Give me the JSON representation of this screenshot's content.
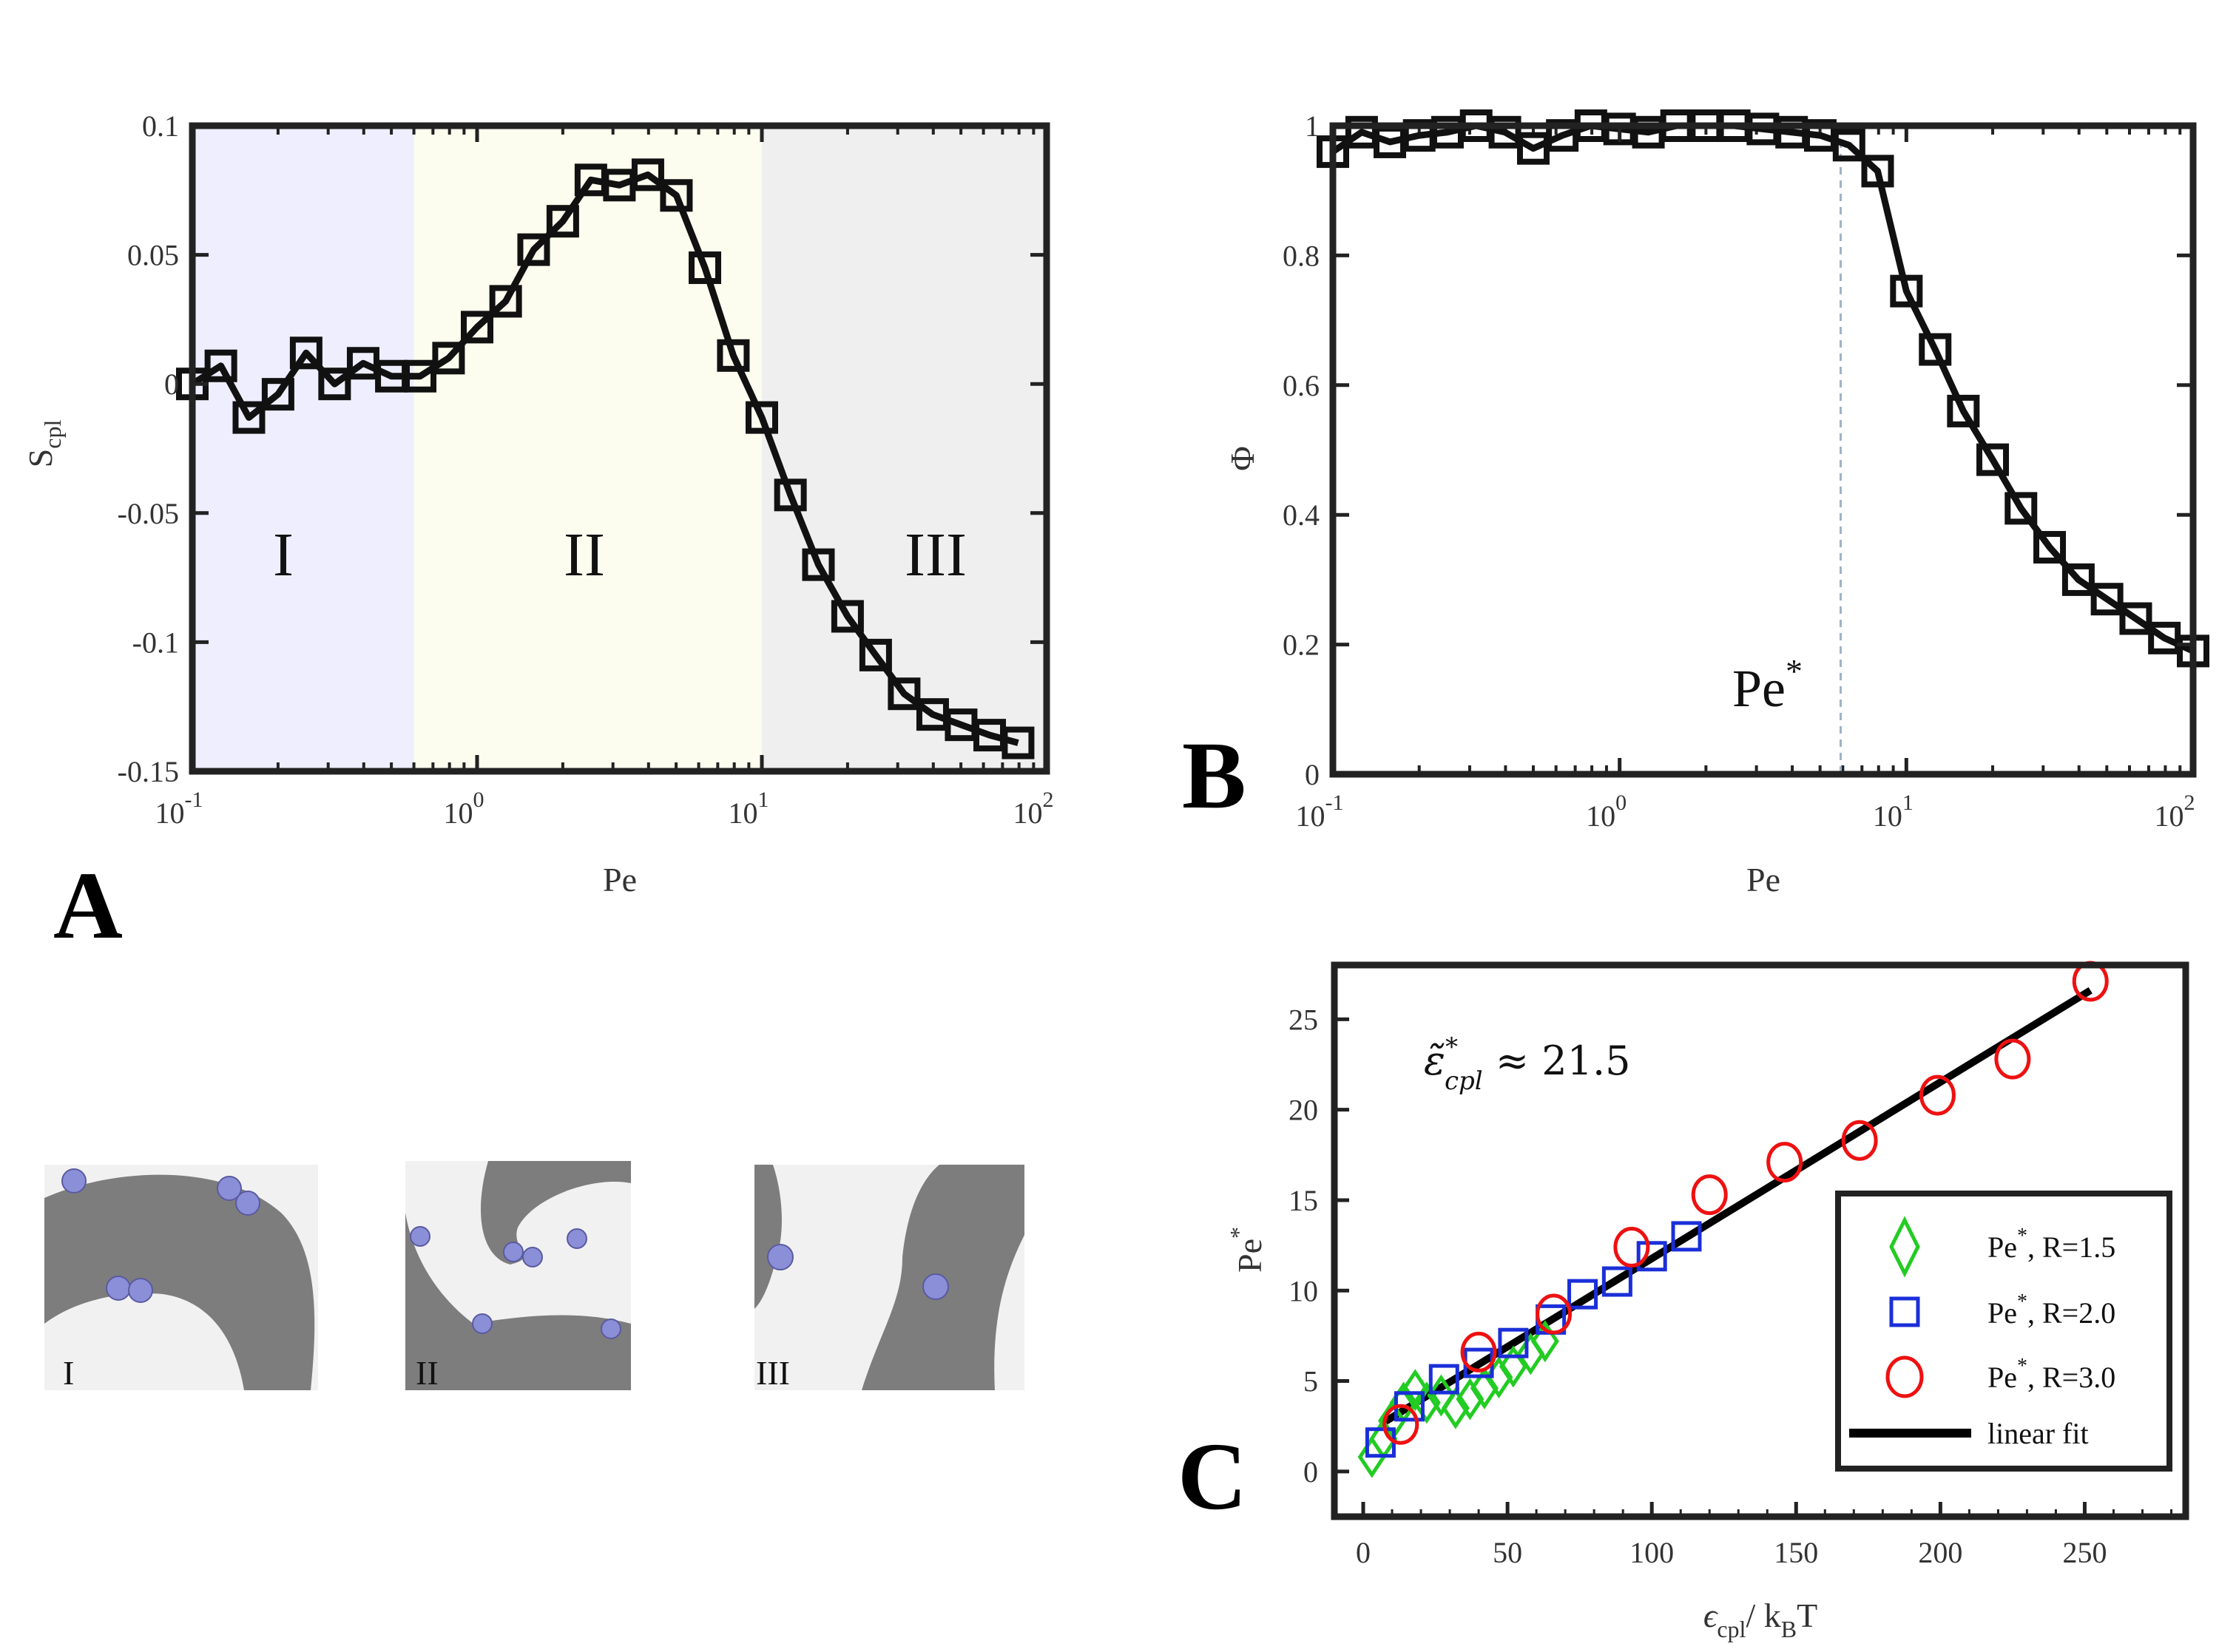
{
  "chart_data": [
    {
      "type": "line",
      "panel": "A",
      "xlabel": "Pe",
      "ylabel_main": "S",
      "ylabel_sub": "cpl",
      "xscale": "log",
      "xlim": [
        0.1,
        100
      ],
      "ylim": [
        -0.15,
        0.1
      ],
      "xticks": [
        0.1,
        1,
        10,
        100
      ],
      "xtick_base": "10",
      "xtick_exps": [
        "-1",
        "0",
        "1",
        "2"
      ],
      "yticks": [
        -0.15,
        -0.1,
        -0.05,
        0,
        0.05,
        0.1
      ],
      "ytick_labels": [
        "-0.15",
        "-0.1",
        "-0.05",
        "0",
        "0.05",
        "0.1"
      ],
      "regions": [
        {
          "label": "I",
          "x_from": 0.1,
          "x_to": 0.6,
          "color": "#eeeeff"
        },
        {
          "label": "II",
          "x_from": 0.6,
          "x_to": 10,
          "color": "#fcfdee"
        },
        {
          "label": "III",
          "x_from": 10,
          "x_to": 100,
          "color": "#efefef"
        }
      ],
      "series": [
        {
          "marker": "square",
          "color": "#111111",
          "x": [
            0.1,
            0.126,
            0.158,
            0.2,
            0.251,
            0.316,
            0.398,
            0.5,
            0.631,
            0.794,
            1.0,
            1.26,
            1.58,
            2.0,
            2.51,
            3.16,
            3.98,
            5.01,
            6.31,
            7.94,
            10.0,
            12.6,
            15.8,
            20.0,
            25.1,
            31.6,
            39.8,
            50.1,
            63.1,
            79.4
          ],
          "y": [
            0.0,
            0.007,
            -0.013,
            -0.004,
            0.012,
            0.0,
            0.008,
            0.003,
            0.003,
            0.01,
            0.022,
            0.032,
            0.052,
            0.063,
            0.079,
            0.077,
            0.081,
            0.073,
            0.045,
            0.011,
            -0.013,
            -0.043,
            -0.07,
            -0.09,
            -0.105,
            -0.12,
            -0.128,
            -0.132,
            -0.136,
            -0.139
          ]
        }
      ]
    },
    {
      "type": "line",
      "panel": "B",
      "xlabel": "Pe",
      "ylabel": "Φ",
      "xscale": "log",
      "xlim": [
        0.1,
        100
      ],
      "ylim": [
        0,
        1
      ],
      "xticks": [
        0.1,
        1,
        10,
        100
      ],
      "xtick_base": "10",
      "xtick_exps": [
        "-1",
        "0",
        "1",
        "2"
      ],
      "yticks": [
        0,
        0.2,
        0.4,
        0.6,
        0.8,
        1
      ],
      "ytick_labels": [
        "0",
        "0.2",
        "0.4",
        "0.6",
        "0.8",
        "1"
      ],
      "vline": {
        "x": 5.9,
        "label_main": "Pe",
        "label_sup": "*",
        "color": "#9fb3c8"
      },
      "series": [
        {
          "marker": "square",
          "color": "#111111",
          "x": [
            0.1,
            0.126,
            0.158,
            0.2,
            0.251,
            0.316,
            0.398,
            0.5,
            0.631,
            0.794,
            1.0,
            1.26,
            1.58,
            2.0,
            2.51,
            3.16,
            3.98,
            5.01,
            6.31,
            7.94,
            10.0,
            12.6,
            15.8,
            20.0,
            25.1,
            31.6,
            39.8,
            50.1,
            63.1,
            79.4,
            100
          ],
          "y": [
            0.96,
            0.99,
            0.975,
            0.985,
            0.99,
            1.0,
            0.99,
            0.965,
            0.985,
            1.0,
            0.995,
            0.99,
            1.0,
            1.0,
            1.0,
            0.995,
            0.99,
            0.985,
            0.97,
            0.93,
            0.745,
            0.655,
            0.56,
            0.485,
            0.41,
            0.35,
            0.3,
            0.27,
            0.24,
            0.21,
            0.19
          ]
        }
      ]
    },
    {
      "type": "scatter",
      "panel": "C",
      "xlabel_main": "ϵ",
      "xlabel_sub": "cpl",
      "xlabel_mid": "/ k",
      "xlabel_sub2": "B",
      "xlabel_end": "T",
      "ylabel_main": "Pe",
      "ylabel_sup": "*",
      "xlim": [
        -10,
        285
      ],
      "ylim": [
        -2.5,
        28
      ],
      "xticks": [
        0,
        50,
        100,
        150,
        200,
        250
      ],
      "xtick_labels": [
        "0",
        "50",
        "100",
        "150",
        "200",
        "250"
      ],
      "yticks": [
        0,
        5,
        10,
        15,
        20,
        25
      ],
      "ytick_labels": [
        "0",
        "5",
        "10",
        "15",
        "20",
        "25"
      ],
      "annotation": {
        "main": "ε̃",
        "sup": "*",
        "sub": "cpl",
        "rest": " ≈ 21.5"
      },
      "legend_placement": "bottom-right",
      "series": [
        {
          "name": "Pe*, R=1.5",
          "legend_main": "Pe",
          "legend_sup": "*",
          "legend_rest": ", R=1.5",
          "marker": "diamond",
          "color": "#22cc22",
          "x": [
            3,
            7,
            10,
            14,
            18,
            22,
            27,
            32,
            37,
            42,
            47,
            52,
            58,
            63
          ],
          "y": [
            0.8,
            1.8,
            2.8,
            3.8,
            4.5,
            3.8,
            4.2,
            3.5,
            4.0,
            4.6,
            5.2,
            5.8,
            6.5,
            7.2
          ]
        },
        {
          "name": "Pe*, R=2.0",
          "legend_main": "Pe",
          "legend_sup": "*",
          "legend_rest": ", R=2.0",
          "marker": "square",
          "color": "#1a2fd8",
          "x": [
            6,
            16,
            28,
            40,
            52,
            65,
            76,
            88,
            100,
            112
          ],
          "y": [
            1.6,
            3.6,
            5.1,
            6.0,
            7.1,
            8.4,
            9.8,
            10.5,
            11.9,
            13.0
          ]
        },
        {
          "name": "Pe*, R=3.0",
          "legend_main": "Pe",
          "legend_sup": "*",
          "legend_rest": ", R=3.0",
          "marker": "circle",
          "color": "#ee1111",
          "x": [
            13,
            40,
            66,
            93,
            120,
            146,
            172,
            199,
            225,
            252
          ],
          "y": [
            2.6,
            6.6,
            8.7,
            12.4,
            15.3,
            17.1,
            18.3,
            20.8,
            22.8,
            27.1
          ]
        },
        {
          "name": "linear fit",
          "marker": "line",
          "color": "#000000",
          "x": [
            7,
            252
          ],
          "y": [
            2.7,
            26.6
          ]
        }
      ]
    }
  ],
  "panels": {
    "a": "A",
    "b": "B",
    "c": "C"
  },
  "regions_text": {
    "r1": "I",
    "r2": "II",
    "r3": "III"
  },
  "snapshots": [
    {
      "label": "I"
    },
    {
      "label": "II"
    },
    {
      "label": "III"
    }
  ]
}
